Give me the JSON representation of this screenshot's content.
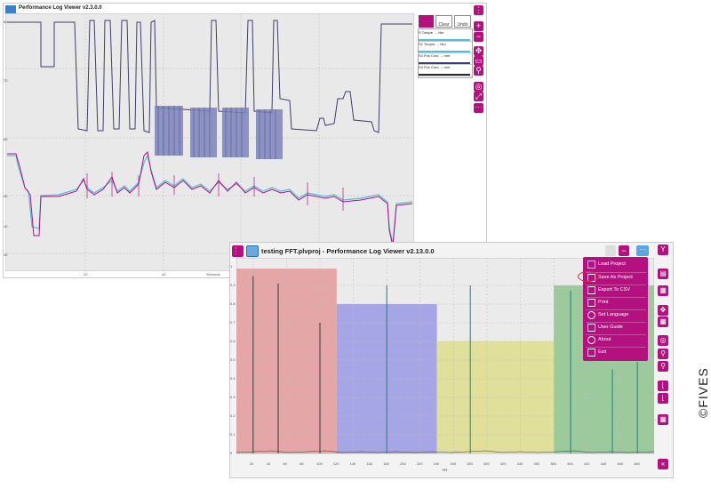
{
  "back_window": {
    "title": "Performance Log Viewer  v2.3.0.0",
    "y_ticks": [
      "80",
      "70",
      "60",
      "50",
      "40",
      "30"
    ],
    "x_ticks": [
      "20",
      "40"
    ],
    "x_label": "Seconds",
    "legend": [
      {
        "label": "S Torque → Nm",
        "color": "#4ec1d8"
      },
      {
        "label": "S2 Torque → Nm",
        "color": "#4ec1d8"
      },
      {
        "label": "S4 Pos Cmd → mm",
        "color": "#3c3c7a"
      },
      {
        "label": "S4 Pos Cmd → mm",
        "color": "#2b2b2b"
      }
    ],
    "toolbar_labels": [
      "",
      "Clear",
      "Undo"
    ]
  },
  "front_window": {
    "title": "testing FFT.plvproj - Performance Log Viewer  v2.13.0.0",
    "menu_items": [
      {
        "label": "Load Project",
        "icon": "folder-icon"
      },
      {
        "label": "Save As Project",
        "icon": "save-icon"
      },
      {
        "label": "Export To CSV",
        "icon": "export-icon"
      },
      {
        "label": "Print",
        "icon": "print-icon"
      },
      {
        "label": "Set Language",
        "icon": "globe-icon"
      },
      {
        "label": "User Guide",
        "icon": "book-icon"
      },
      {
        "label": "About",
        "icon": "info-icon"
      },
      {
        "label": "Exit",
        "icon": "exit-icon"
      }
    ],
    "y_ticks": [
      "1",
      "0.9",
      "0.8",
      "0.7",
      "0.6",
      "0.5",
      "0.4",
      "0.3",
      "0.2",
      "0.1",
      "0"
    ],
    "x_ticks": [
      "20",
      "40",
      "60",
      "80",
      "100",
      "120",
      "140",
      "160",
      "180",
      "200",
      "220",
      "240",
      "260",
      "280",
      "300",
      "320",
      "340",
      "360",
      "380",
      "400",
      "420",
      "440",
      "460",
      "480"
    ],
    "x_label": "Hz",
    "bands": [
      {
        "from": 0,
        "to": 120,
        "height": 0.99,
        "color": "#e39a9a"
      },
      {
        "from": 120,
        "to": 240,
        "height": 0.8,
        "color": "#9a9ae6"
      },
      {
        "from": 240,
        "to": 380,
        "height": 0.6,
        "color": "#dede8c"
      },
      {
        "from": 380,
        "to": 500,
        "height": 0.9,
        "color": "#8ec48e"
      }
    ],
    "peaks": [
      {
        "x": 20,
        "y": 0.95
      },
      {
        "x": 50,
        "y": 0.91
      },
      {
        "x": 100,
        "y": 0.7
      },
      {
        "x": 180,
        "y": 0.9
      },
      {
        "x": 280,
        "y": 0.9
      },
      {
        "x": 400,
        "y": 0.87
      },
      {
        "x": 450,
        "y": 0.45
      },
      {
        "x": 480,
        "y": 0.49
      }
    ]
  },
  "watermark": "©FIVES",
  "accent_color": "#b5107f"
}
